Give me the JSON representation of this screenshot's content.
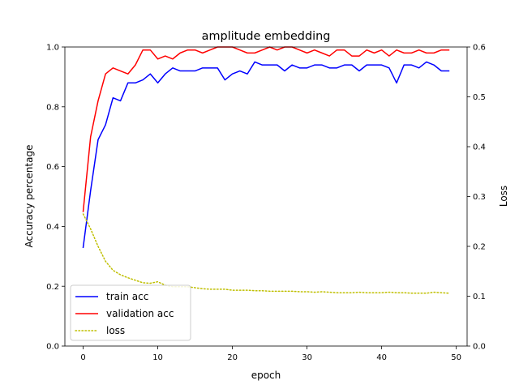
{
  "chart_data": {
    "type": "line",
    "title": "amplitude embedding",
    "xlabel": "epoch",
    "ylabel": "Accuracy percentage",
    "y2label": "Loss",
    "xlim": [
      -2.45,
      51.45
    ],
    "ylim": [
      0,
      1.0
    ],
    "y2lim": [
      0,
      0.6
    ],
    "xticks": [
      0,
      10,
      20,
      30,
      40,
      50
    ],
    "yticks": [
      0.0,
      0.2,
      0.4,
      0.6,
      0.8,
      1.0
    ],
    "y2ticks": [
      0.0,
      0.1,
      0.2,
      0.3,
      0.4,
      0.5,
      0.6
    ],
    "grid": false,
    "legend_position": "lower-left",
    "x": [
      0,
      1,
      2,
      3,
      4,
      5,
      6,
      7,
      8,
      9,
      10,
      11,
      12,
      13,
      14,
      15,
      16,
      17,
      18,
      19,
      20,
      21,
      22,
      23,
      24,
      25,
      26,
      27,
      28,
      29,
      30,
      31,
      32,
      33,
      34,
      35,
      36,
      37,
      38,
      39,
      40,
      41,
      42,
      43,
      44,
      45,
      46,
      47,
      48,
      49
    ],
    "series": [
      {
        "name": "train acc",
        "axis": "left",
        "color": "#0000ff",
        "style": "solid",
        "values": [
          0.33,
          0.52,
          0.69,
          0.74,
          0.83,
          0.82,
          0.88,
          0.88,
          0.89,
          0.91,
          0.88,
          0.91,
          0.93,
          0.92,
          0.92,
          0.92,
          0.93,
          0.93,
          0.93,
          0.89,
          0.91,
          0.92,
          0.91,
          0.95,
          0.94,
          0.94,
          0.94,
          0.92,
          0.94,
          0.93,
          0.93,
          0.94,
          0.94,
          0.93,
          0.93,
          0.94,
          0.94,
          0.92,
          0.94,
          0.94,
          0.94,
          0.93,
          0.88,
          0.94,
          0.94,
          0.93,
          0.95,
          0.94,
          0.92,
          0.92
        ]
      },
      {
        "name": "validation acc",
        "axis": "left",
        "color": "#ff0000",
        "style": "solid",
        "values": [
          0.45,
          0.7,
          0.82,
          0.91,
          0.93,
          0.92,
          0.91,
          0.94,
          0.99,
          0.99,
          0.96,
          0.97,
          0.96,
          0.98,
          0.99,
          0.99,
          0.98,
          0.99,
          1.0,
          1.0,
          1.0,
          0.99,
          0.98,
          0.98,
          0.99,
          1.0,
          0.99,
          1.0,
          1.0,
          0.99,
          0.98,
          0.99,
          0.98,
          0.97,
          0.99,
          0.99,
          0.97,
          0.97,
          0.99,
          0.98,
          0.99,
          0.97,
          0.99,
          0.98,
          0.98,
          0.99,
          0.98,
          0.98,
          0.99,
          0.99
        ]
      },
      {
        "name": "loss",
        "axis": "right",
        "color": "#bfbf00",
        "style": "dotted",
        "values": [
          0.265,
          0.235,
          0.2,
          0.17,
          0.152,
          0.143,
          0.137,
          0.132,
          0.127,
          0.126,
          0.129,
          0.122,
          0.119,
          0.119,
          0.119,
          0.117,
          0.115,
          0.114,
          0.114,
          0.114,
          0.112,
          0.112,
          0.112,
          0.111,
          0.111,
          0.11,
          0.11,
          0.11,
          0.11,
          0.109,
          0.109,
          0.108,
          0.109,
          0.108,
          0.107,
          0.107,
          0.107,
          0.108,
          0.107,
          0.107,
          0.107,
          0.108,
          0.107,
          0.107,
          0.106,
          0.106,
          0.106,
          0.108,
          0.107,
          0.106
        ]
      }
    ]
  }
}
